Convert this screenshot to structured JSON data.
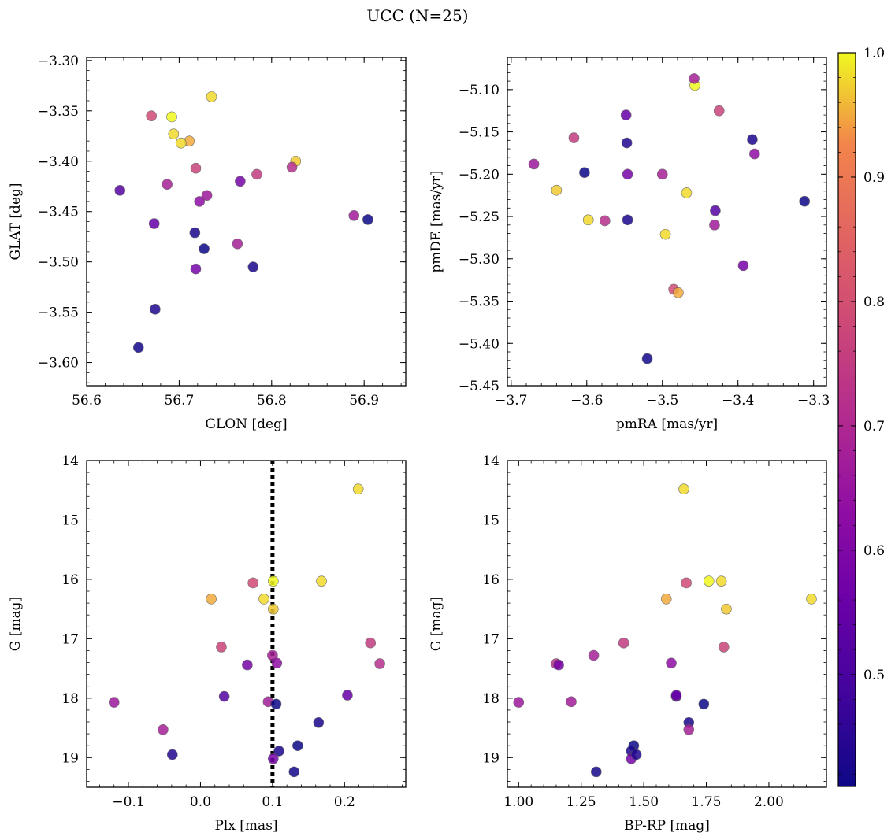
{
  "suptitle": "UCC (N=25)",
  "colorbar": {
    "vmin": 0.41,
    "vmax": 1.0,
    "ticks": [
      "0.5",
      "0.6",
      "0.7",
      "0.8",
      "0.9",
      "1.0"
    ],
    "tick_values": [
      0.5,
      0.6,
      0.7,
      0.8,
      0.9,
      1.0
    ],
    "colormap": "plasma"
  },
  "members": {
    "glon": [
      56.735,
      56.67,
      56.692,
      56.694,
      56.711,
      56.702,
      56.826,
      56.718,
      56.784,
      56.822,
      56.687,
      56.766,
      56.722,
      56.73,
      56.636,
      56.889,
      56.904,
      56.673,
      56.717,
      56.763,
      56.727,
      56.78,
      56.718,
      56.674,
      56.656
    ],
    "glat": [
      -3.336,
      -3.355,
      -3.356,
      -3.373,
      -3.38,
      -3.382,
      -3.4,
      -3.407,
      -3.413,
      -3.406,
      -3.423,
      -3.42,
      -3.44,
      -3.434,
      -3.429,
      -3.454,
      -3.458,
      -3.462,
      -3.471,
      -3.482,
      -3.487,
      -3.505,
      -3.507,
      -3.547,
      -3.585
    ],
    "pmra": [
      -3.468,
      -3.485,
      -3.457,
      -3.598,
      -3.479,
      -3.496,
      -3.64,
      -3.425,
      -3.617,
      -3.576,
      -3.5,
      -3.393,
      -3.378,
      -3.67,
      -3.43,
      -3.431,
      -3.312,
      -3.548,
      -3.381,
      -3.458,
      -3.603,
      -3.546,
      -3.546,
      -3.547,
      -3.52
    ],
    "pmde": [
      -5.222,
      -5.336,
      -5.095,
      -5.254,
      -5.34,
      -5.271,
      -5.219,
      -5.125,
      -5.157,
      -5.255,
      -5.2,
      -5.308,
      -5.176,
      -5.188,
      -5.243,
      -5.26,
      -5.232,
      -5.13,
      -5.159,
      -5.087,
      -5.198,
      -5.254,
      -5.2,
      -5.163,
      -5.418
    ],
    "plx": [
      0.219,
      0.073,
      0.101,
      0.168,
      0.015,
      0.088,
      0.101,
      0.029,
      0.236,
      0.249,
      0.1,
      0.065,
      0.106,
      -0.12,
      0.033,
      0.094,
      0.105,
      0.204,
      0.164,
      -0.052,
      0.135,
      0.109,
      0.101,
      -0.039,
      0.13
    ],
    "gmag": [
      14.48,
      16.06,
      16.03,
      16.03,
      16.33,
      16.33,
      16.5,
      17.14,
      17.07,
      17.42,
      17.28,
      17.44,
      17.41,
      18.07,
      17.97,
      18.06,
      18.1,
      17.95,
      18.41,
      18.53,
      18.8,
      18.89,
      19.02,
      18.95,
      19.24
    ],
    "bprp": [
      1.66,
      1.67,
      1.76,
      1.81,
      1.59,
      2.17,
      1.83,
      1.82,
      1.42,
      1.15,
      1.3,
      1.16,
      1.61,
      1.0,
      1.63,
      1.21,
      1.74,
      1.63,
      1.68,
      1.68,
      1.46,
      1.45,
      1.45,
      1.47,
      1.31
    ],
    "prob": [
      0.98,
      0.79,
      1.0,
      0.98,
      0.95,
      0.98,
      0.97,
      0.77,
      0.75,
      0.72,
      0.68,
      0.58,
      0.63,
      0.66,
      0.52,
      0.67,
      0.41,
      0.55,
      0.43,
      0.68,
      0.41,
      0.43,
      0.58,
      0.44,
      0.42
    ]
  },
  "chart_data": [
    {
      "type": "scatter",
      "x_field": "glon",
      "y_field": "glat",
      "xlabel": "GLON [deg]",
      "ylabel": "GLAT [deg]",
      "xlim": [
        56.6,
        56.945
      ],
      "ylim": [
        -3.623,
        -3.297
      ],
      "xticks": [
        56.6,
        56.7,
        56.8,
        56.9
      ],
      "xtick_labels": [
        "56.6",
        "56.7",
        "56.8",
        "56.9"
      ],
      "yticks": [
        -3.3,
        -3.35,
        -3.4,
        -3.45,
        -3.5,
        -3.55,
        -3.6
      ],
      "ytick_labels": [
        "−3.30",
        "−3.35",
        "−3.40",
        "−3.45",
        "−3.50",
        "−3.55",
        "−3.60"
      ]
    },
    {
      "type": "scatter",
      "x_field": "pmra",
      "y_field": "pmde",
      "xlabel": "pmRA [mas/yr]",
      "ylabel": "pmDE [mas/yr]",
      "xlim": [
        -3.705,
        -3.283
      ],
      "ylim": [
        -5.45,
        -5.062
      ],
      "xticks": [
        -3.7,
        -3.6,
        -3.5,
        -3.4,
        -3.3
      ],
      "xtick_labels": [
        "−3.7",
        "−3.6",
        "−3.5",
        "−3.4",
        "−3.3"
      ],
      "yticks": [
        -5.1,
        -5.15,
        -5.2,
        -5.25,
        -5.3,
        -5.35,
        -5.4,
        -5.45
      ],
      "ytick_labels": [
        "−5.10",
        "−5.15",
        "−5.20",
        "−5.25",
        "−5.30",
        "−5.35",
        "−5.40",
        "−5.45"
      ]
    },
    {
      "type": "scatter",
      "x_field": "plx",
      "y_field": "gmag",
      "xlabel": "Plx [mas]",
      "ylabel": "G [mag]",
      "xlim": [
        -0.158,
        0.285
      ],
      "ylim": [
        19.5,
        14.0
      ],
      "y_inverted": true,
      "xticks": [
        -0.1,
        0.0,
        0.1,
        0.2
      ],
      "xtick_labels": [
        "−0.1",
        "0.0",
        "0.1",
        "0.2"
      ],
      "yticks": [
        14,
        15,
        16,
        17,
        18,
        19
      ],
      "ytick_labels": [
        "14",
        "15",
        "16",
        "17",
        "18",
        "19"
      ],
      "vline": {
        "x": 0.1,
        "style": "dotted",
        "color": "#000000"
      }
    },
    {
      "type": "scatter",
      "x_field": "bprp",
      "y_field": "gmag",
      "xlabel": "BP-RP [mag]",
      "ylabel": "G [mag]",
      "xlim": [
        0.955,
        2.23
      ],
      "ylim": [
        19.5,
        14.0
      ],
      "y_inverted": true,
      "xticks": [
        1.0,
        1.25,
        1.5,
        1.75,
        2.0
      ],
      "xtick_labels": [
        "1.00",
        "1.25",
        "1.50",
        "1.75",
        "2.00"
      ],
      "yticks": [
        14,
        15,
        16,
        17,
        18,
        19
      ],
      "ytick_labels": [
        "14",
        "15",
        "16",
        "17",
        "18",
        "19"
      ]
    }
  ]
}
